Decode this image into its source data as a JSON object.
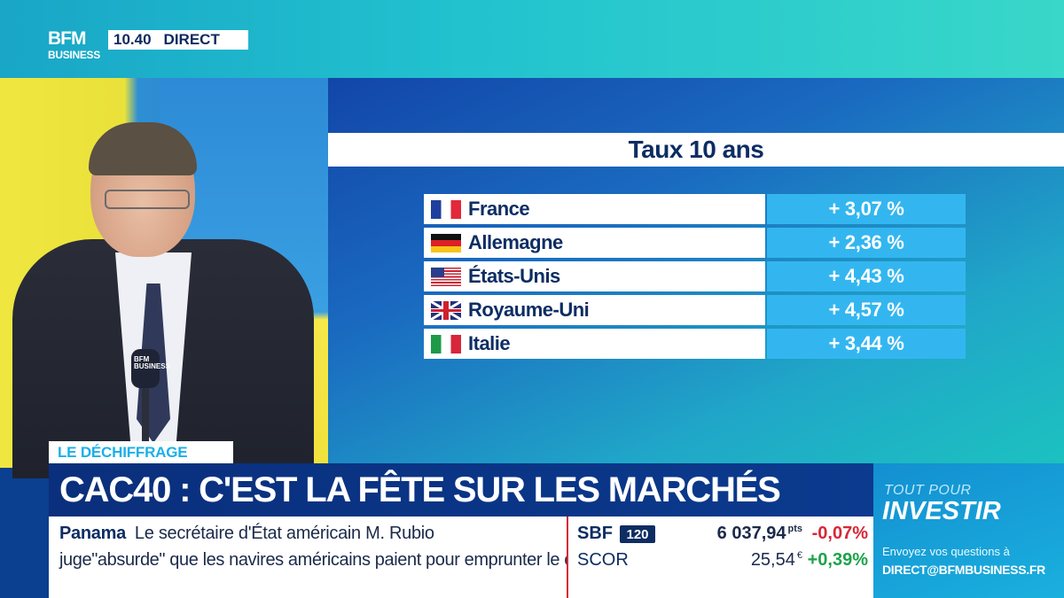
{
  "channel": {
    "logo_top": "BFM",
    "logo_bottom": "BUSINESS",
    "time": "10.40",
    "live_label": "DIRECT"
  },
  "graphic": {
    "title": "Taux 10 ans",
    "rows": [
      {
        "country": "France",
        "flag": "france-flag-icon",
        "value": "+ 3,07 %"
      },
      {
        "country": "Allemagne",
        "flag": "germany-flag-icon",
        "value": "+ 2,36 %"
      },
      {
        "country": "États-Unis",
        "flag": "usa-flag-icon",
        "value": "+ 4,43 %"
      },
      {
        "country": "Royaume-Uni",
        "flag": "uk-flag-icon",
        "value": "+ 4,57 %"
      },
      {
        "country": "Italie",
        "flag": "italy-flag-icon",
        "value": "+ 3,44 %"
      }
    ]
  },
  "lower_third": {
    "kicker": "LE DÉCHIFFRAGE",
    "headline": "CAC40 : C'EST LA FÊTE SUR LES MARCHÉS"
  },
  "news_ticker": {
    "topic": "Panama",
    "line1": "Le secrétaire d'État américain M. Rubio",
    "line2": "juge\"absurde\" que les navires américains paient pour emprunter le canal."
  },
  "markets": [
    {
      "name": "SBF",
      "badge": "120",
      "value": "6 037,94",
      "unit": "pts",
      "change": "-0,07%",
      "direction": "down"
    },
    {
      "name": "SCOR",
      "badge": "",
      "value": "25,54",
      "unit": "€",
      "change": "+0,39%",
      "direction": "up"
    }
  ],
  "investir": {
    "tagline": "TOUT POUR",
    "title": "INVESTIR",
    "question": "Envoyez vos questions à",
    "email": "DIRECT@BFMBUSINESS.FR"
  },
  "mic_label": "BFM BUSINESS",
  "colors": {
    "accent_blue": "#0b3a8e",
    "cyan": "#33b6f0",
    "negative": "#d62837",
    "positive": "#1da24a"
  }
}
